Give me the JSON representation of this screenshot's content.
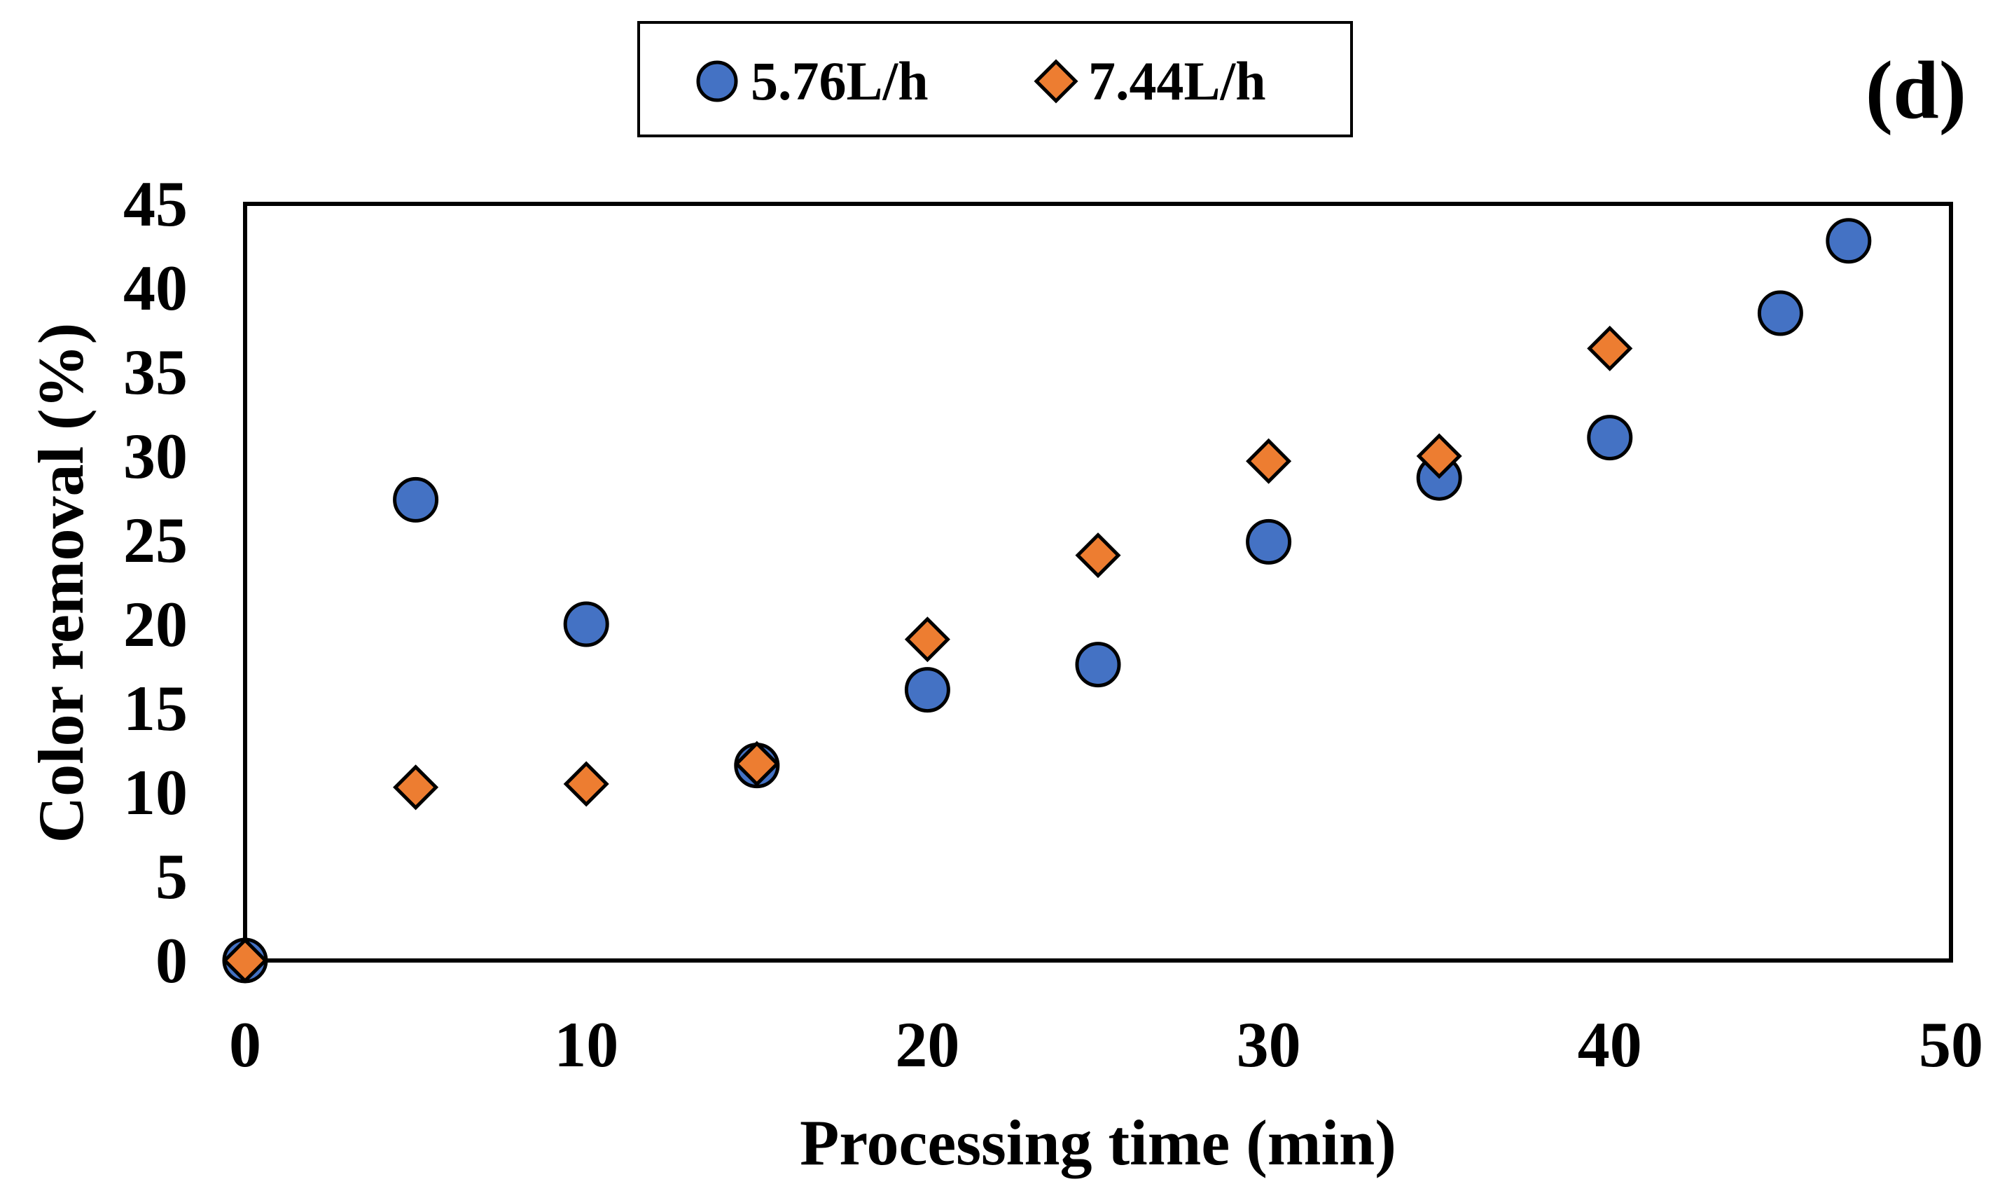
{
  "chart_data": {
    "type": "scatter",
    "title": "",
    "panel_label": "(d)",
    "xlabel": "Processing time (min)",
    "ylabel": "Color removal (%)",
    "xlim": [
      0,
      50
    ],
    "ylim": [
      0,
      45
    ],
    "x_ticks": [
      0,
      10,
      20,
      30,
      40,
      50
    ],
    "y_ticks": [
      0,
      5,
      10,
      15,
      20,
      25,
      30,
      35,
      40,
      45
    ],
    "grid": false,
    "legend_position": "top-center",
    "series": [
      {
        "name": "5.76L/h",
        "marker": "circle",
        "color": "#4472C4",
        "x": [
          0,
          5,
          10,
          15,
          20,
          25,
          30,
          35,
          40,
          45,
          47
        ],
        "y": [
          0,
          27.4,
          20.0,
          11.6,
          16.1,
          17.6,
          24.9,
          28.7,
          31.1,
          38.5,
          42.8
        ]
      },
      {
        "name": "7.44L/h",
        "marker": "diamond",
        "color": "#ED7D31",
        "x": [
          0,
          5,
          10,
          15,
          20,
          25,
          30,
          35,
          40
        ],
        "y": [
          0,
          10.3,
          10.5,
          11.7,
          19.1,
          24.1,
          29.7,
          30.0,
          36.4
        ]
      }
    ]
  }
}
